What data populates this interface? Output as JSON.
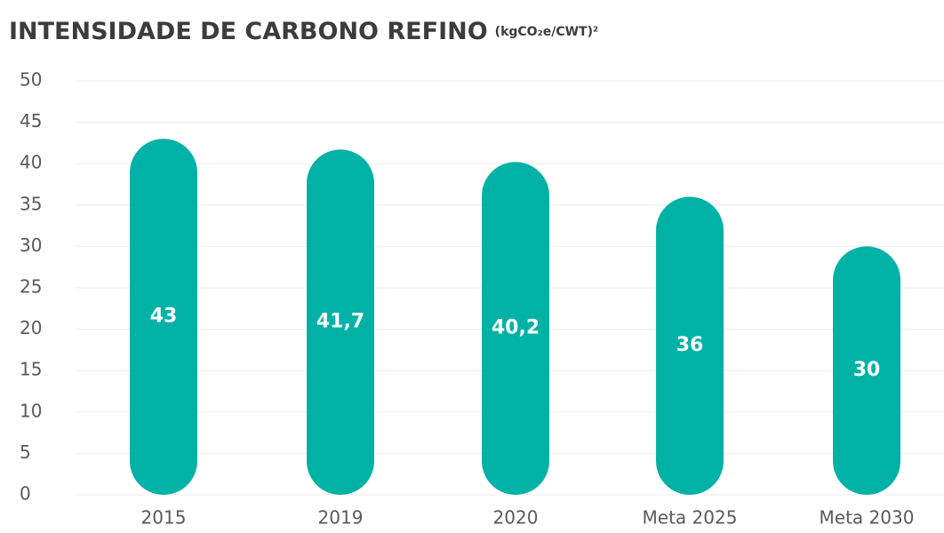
{
  "chart_data": {
    "type": "bar",
    "title": "INTENSIDADE DE CARBONO REFINO",
    "unit": "(kgCO₂e/CWT)²",
    "categories": [
      "2015",
      "2019",
      "2020",
      "Meta 2025",
      "Meta 2030"
    ],
    "values": [
      43,
      41.7,
      40.2,
      36,
      30
    ],
    "value_labels": [
      "43",
      "41,7",
      "40,2",
      "36",
      "30"
    ],
    "color": "#00b2a6",
    "ylim": [
      0,
      50
    ],
    "yticks": [
      0,
      5,
      10,
      15,
      20,
      25,
      30,
      35,
      40,
      45,
      50
    ],
    "grid": true
  }
}
